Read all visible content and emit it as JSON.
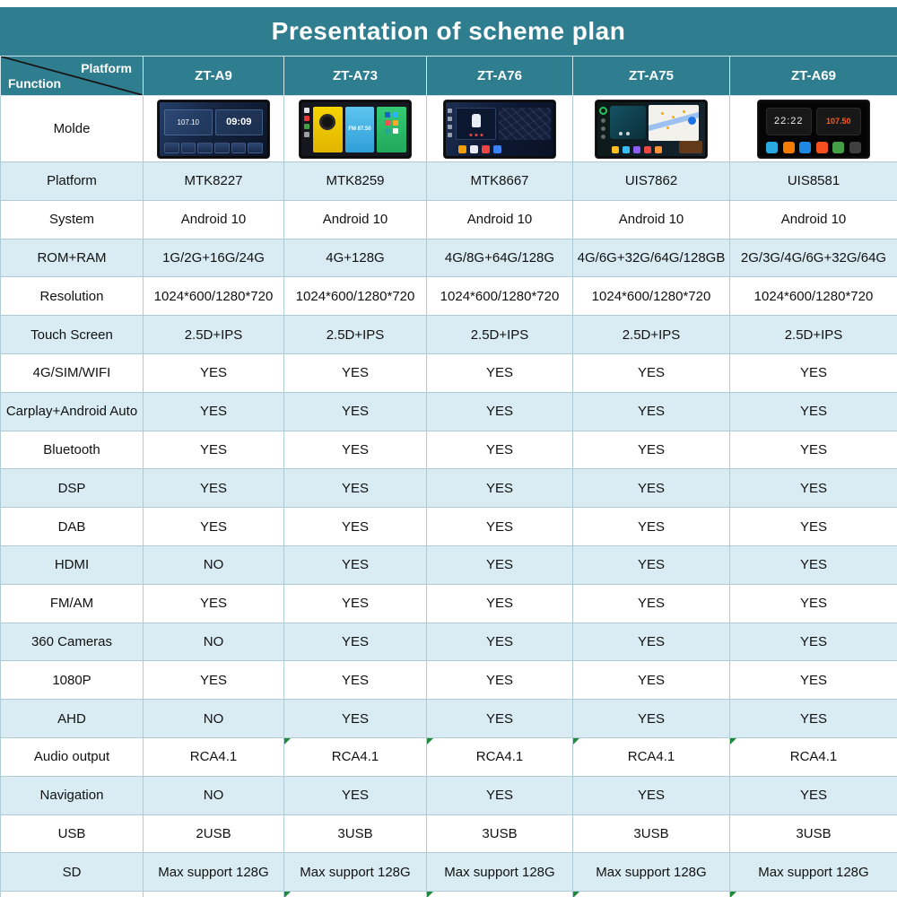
{
  "title": "Presentation of scheme plan",
  "header": {
    "corner_top": "Platform",
    "corner_bottom": "Function",
    "columns": [
      "ZT-A9",
      "ZT-A73",
      "ZT-A76",
      "ZT-A75",
      "ZT-A69"
    ]
  },
  "rows": [
    {
      "label": "Molde",
      "type": "images"
    },
    {
      "label": "Platform",
      "values": [
        "MTK8227",
        "MTK8259",
        "MTK8667",
        "UIS7862",
        "UIS8581"
      ]
    },
    {
      "label": "System",
      "values": [
        "Android 10",
        "Android 10",
        "Android 10",
        "Android 10",
        "Android 10"
      ]
    },
    {
      "label": "ROM+RAM",
      "values": [
        "1G/2G+16G/24G",
        "4G+128G",
        "4G/8G+64G/128G",
        "4G/6G+32G/64G/128GB",
        "2G/3G/4G/6G+32G/64G"
      ]
    },
    {
      "label": "Resolution",
      "values": [
        "1024*600/1280*720",
        "1024*600/1280*720",
        "1024*600/1280*720",
        "1024*600/1280*720",
        "1024*600/1280*720"
      ]
    },
    {
      "label": "Touch Screen",
      "values": [
        "2.5D+IPS",
        "2.5D+IPS",
        "2.5D+IPS",
        "2.5D+IPS",
        "2.5D+IPS"
      ]
    },
    {
      "label": "4G/SIM/WIFI",
      "values": [
        "YES",
        "YES",
        "YES",
        "YES",
        "YES"
      ]
    },
    {
      "label": "Carplay+Android Auto",
      "values": [
        "YES",
        "YES",
        "YES",
        "YES",
        "YES"
      ]
    },
    {
      "label": "Bluetooth",
      "values": [
        "YES",
        "YES",
        "YES",
        "YES",
        "YES"
      ]
    },
    {
      "label": "DSP",
      "values": [
        "YES",
        "YES",
        "YES",
        "YES",
        "YES"
      ]
    },
    {
      "label": "DAB",
      "values": [
        "YES",
        "YES",
        "YES",
        "YES",
        "YES"
      ]
    },
    {
      "label": "HDMI",
      "values": [
        "NO",
        "YES",
        "YES",
        "YES",
        "YES"
      ]
    },
    {
      "label": "FM/AM",
      "values": [
        "YES",
        "YES",
        "YES",
        "YES",
        "YES"
      ]
    },
    {
      "label": "360 Cameras",
      "values": [
        "NO",
        "YES",
        "YES",
        "YES",
        "YES"
      ]
    },
    {
      "label": "1080P",
      "values": [
        "YES",
        "YES",
        "YES",
        "YES",
        "YES"
      ]
    },
    {
      "label": "AHD",
      "values": [
        "NO",
        "YES",
        "YES",
        "YES",
        "YES"
      ]
    },
    {
      "label": "Audio output",
      "values": [
        "RCA4.1",
        "RCA4.1",
        "RCA4.1",
        "RCA4.1",
        "RCA4.1"
      ],
      "green_markers": [
        false,
        true,
        true,
        true,
        true
      ]
    },
    {
      "label": "Navigation",
      "values": [
        "NO",
        "YES",
        "YES",
        "YES",
        "YES"
      ]
    },
    {
      "label": "USB",
      "values": [
        "2USB",
        "3USB",
        "3USB",
        "3USB",
        "3USB"
      ]
    },
    {
      "label": "SD",
      "values": [
        "Max support 128G",
        "Max support 128G",
        "Max support 128G",
        "Max support 128G",
        "Max support 128G"
      ]
    },
    {
      "label": "",
      "values": [
        "",
        "",
        "",
        "",
        ""
      ],
      "partial": true,
      "green_markers": [
        false,
        true,
        true,
        true,
        true
      ]
    }
  ],
  "devices": [
    {
      "id": "zt-a9",
      "screen_texts": {
        "frequency": "107.10",
        "clock": "09:09"
      }
    },
    {
      "id": "zt-a73",
      "screen_texts": {
        "radio": "FM 87.50"
      }
    },
    {
      "id": "zt-a76",
      "screen_texts": {}
    },
    {
      "id": "zt-a75",
      "screen_texts": {}
    },
    {
      "id": "zt-a69",
      "screen_texts": {
        "clock": "22:22",
        "frequency": "107.50"
      }
    }
  ],
  "colors": {
    "teal_header": "#2F7E90",
    "row_alt": "#D9ECF3",
    "row_plain": "#FFFFFF",
    "grid_border": "#AFCBD6",
    "green_marker": "#1F8A3C",
    "title_text": "#FFFFFF"
  }
}
